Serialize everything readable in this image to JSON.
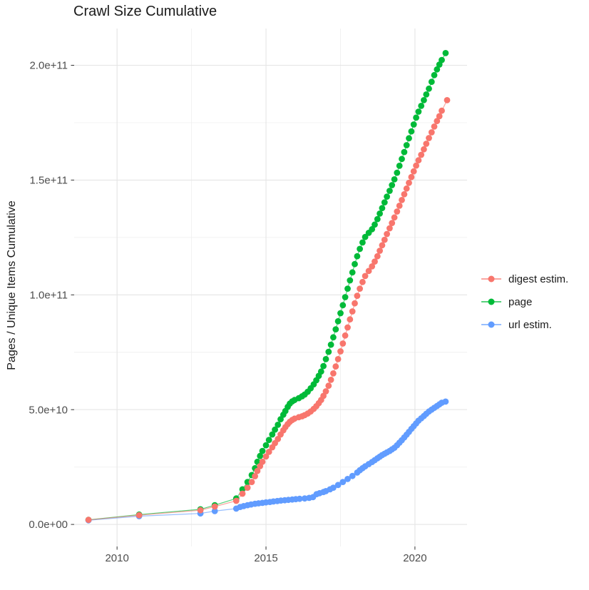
{
  "title": "Crawl Size Cumulative",
  "axes": {
    "y_label": "Pages / Unique Items Cumulative",
    "x_ticks": [
      {
        "value": 2010,
        "label": "2010"
      },
      {
        "value": 2015,
        "label": "2015"
      },
      {
        "value": 2020,
        "label": "2020"
      }
    ],
    "y_ticks": [
      {
        "value": 0,
        "label": "0.0e+00"
      },
      {
        "value": 50,
        "label": "5.0e+10"
      },
      {
        "value": 100,
        "label": "1.0e+11"
      },
      {
        "value": 150,
        "label": "1.5e+11"
      },
      {
        "value": 200,
        "label": "2.0e+11"
      }
    ],
    "x_minor": [
      2012.5,
      2017.5
    ],
    "y_minor": [
      25,
      75,
      125,
      175
    ],
    "xlim": [
      2008.56,
      2021.75
    ],
    "ylim": [
      -9.6,
      216
    ]
  },
  "legend": {
    "items": [
      {
        "label": "digest estim.",
        "color": "#F8766D"
      },
      {
        "label": "page",
        "color": "#00BA38"
      },
      {
        "label": "url estim.",
        "color": "#619CFF"
      }
    ]
  },
  "colors": {
    "grid_major": "#E5E5E5",
    "grid_minor": "#F0F0F0",
    "tick_mark": "#333333",
    "tick_text": "#4D4D4D"
  },
  "chart_data": {
    "type": "scatter",
    "title": "Crawl Size Cumulative",
    "xlabel": "",
    "ylabel": "Pages / Unique Items Cumulative",
    "value_unit": "billions (1e9) of pages / unique items",
    "x_unit": "decimal year",
    "xlim": [
      2008.56,
      2021.75
    ],
    "ylim_e9": [
      -9.6,
      216
    ],
    "grid": true,
    "legend_position": "right",
    "series": [
      {
        "name": "digest estim.",
        "color": "#F8766D",
        "points": [
          [
            2009.04,
            2
          ],
          [
            2010.74,
            4
          ],
          [
            2012.8,
            6.2
          ],
          [
            2013.28,
            7.8
          ],
          [
            2014.0,
            10.3
          ],
          [
            2014.21,
            13.4
          ],
          [
            2014.38,
            16
          ],
          [
            2014.52,
            18.5
          ],
          [
            2014.63,
            21
          ],
          [
            2014.71,
            23.3
          ],
          [
            2014.8,
            25.4
          ],
          [
            2014.88,
            27.3
          ],
          [
            2015.0,
            29.6
          ],
          [
            2015.1,
            31.6
          ],
          [
            2015.21,
            33.6
          ],
          [
            2015.3,
            35.4
          ],
          [
            2015.4,
            37.2
          ],
          [
            2015.49,
            39.2
          ],
          [
            2015.58,
            41
          ],
          [
            2015.65,
            42.4
          ],
          [
            2015.73,
            43.7
          ],
          [
            2015.8,
            44.7
          ],
          [
            2015.88,
            45.5
          ],
          [
            2015.96,
            46.1
          ],
          [
            2016.1,
            46.7
          ],
          [
            2016.21,
            47.1
          ],
          [
            2016.3,
            47.6
          ],
          [
            2016.4,
            48.3
          ],
          [
            2016.5,
            49.2
          ],
          [
            2016.6,
            50.3
          ],
          [
            2016.69,
            51.5
          ],
          [
            2016.77,
            52.8
          ],
          [
            2016.85,
            54.2
          ],
          [
            2016.93,
            56
          ],
          [
            2017.01,
            58
          ],
          [
            2017.1,
            60.4
          ],
          [
            2017.18,
            63
          ],
          [
            2017.26,
            65.8
          ],
          [
            2017.34,
            68.8
          ],
          [
            2017.42,
            72
          ],
          [
            2017.5,
            75.4
          ],
          [
            2017.58,
            78.8
          ],
          [
            2017.66,
            82.3
          ],
          [
            2017.74,
            85.8
          ],
          [
            2017.82,
            89.3
          ],
          [
            2017.9,
            92.8
          ],
          [
            2017.98,
            96.3
          ],
          [
            2018.06,
            99.6
          ],
          [
            2018.15,
            102.7
          ],
          [
            2018.24,
            105.6
          ],
          [
            2018.33,
            108.2
          ],
          [
            2018.45,
            110.4
          ],
          [
            2018.56,
            112.4
          ],
          [
            2018.65,
            114.5
          ],
          [
            2018.74,
            116.8
          ],
          [
            2018.82,
            119.2
          ],
          [
            2018.9,
            121.6
          ],
          [
            2018.98,
            124
          ],
          [
            2019.06,
            126.5
          ],
          [
            2019.15,
            129
          ],
          [
            2019.23,
            131.3
          ],
          [
            2019.31,
            133.7
          ],
          [
            2019.4,
            136.3
          ],
          [
            2019.48,
            138.8
          ],
          [
            2019.56,
            141.3
          ],
          [
            2019.64,
            143.8
          ],
          [
            2019.72,
            146.3
          ],
          [
            2019.8,
            148.8
          ],
          [
            2019.88,
            151.3
          ],
          [
            2019.96,
            153.8
          ],
          [
            2020.04,
            156.3
          ],
          [
            2020.12,
            158.6
          ],
          [
            2020.21,
            161
          ],
          [
            2020.3,
            163.4
          ],
          [
            2020.38,
            165.8
          ],
          [
            2020.47,
            168.3
          ],
          [
            2020.56,
            170.8
          ],
          [
            2020.65,
            173.3
          ],
          [
            2020.74,
            175.7
          ],
          [
            2020.82,
            177.8
          ],
          [
            2020.9,
            180.2
          ],
          [
            2021.08,
            184.8
          ]
        ]
      },
      {
        "name": "page",
        "color": "#00BA38",
        "points": [
          [
            2009.04,
            2
          ],
          [
            2010.74,
            4.3
          ],
          [
            2012.8,
            6.6
          ],
          [
            2013.28,
            8.4
          ],
          [
            2014.0,
            11.3
          ],
          [
            2014.21,
            15.3
          ],
          [
            2014.38,
            18.5
          ],
          [
            2014.52,
            21.5
          ],
          [
            2014.63,
            24.5
          ],
          [
            2014.71,
            27.3
          ],
          [
            2014.8,
            29.8
          ],
          [
            2014.88,
            32
          ],
          [
            2015.0,
            34.5
          ],
          [
            2015.1,
            36.8
          ],
          [
            2015.21,
            39.2
          ],
          [
            2015.3,
            41.3
          ],
          [
            2015.4,
            43.4
          ],
          [
            2015.49,
            45.8
          ],
          [
            2015.58,
            47.8
          ],
          [
            2015.65,
            49.4
          ],
          [
            2015.73,
            51.2
          ],
          [
            2015.8,
            52.6
          ],
          [
            2015.88,
            53.6
          ],
          [
            2015.96,
            54.2
          ],
          [
            2016.1,
            55
          ],
          [
            2016.21,
            55.8
          ],
          [
            2016.3,
            56.6
          ],
          [
            2016.4,
            57.8
          ],
          [
            2016.5,
            59.3
          ],
          [
            2016.6,
            61
          ],
          [
            2016.69,
            62.8
          ],
          [
            2016.77,
            64.7
          ],
          [
            2016.85,
            66.6
          ],
          [
            2016.93,
            69
          ],
          [
            2017.01,
            72
          ],
          [
            2017.1,
            75.2
          ],
          [
            2017.18,
            78.3
          ],
          [
            2017.26,
            81.5
          ],
          [
            2017.34,
            85
          ],
          [
            2017.42,
            88.5
          ],
          [
            2017.5,
            92
          ],
          [
            2017.58,
            95.5
          ],
          [
            2017.66,
            99
          ],
          [
            2017.74,
            102.7
          ],
          [
            2017.82,
            106.3
          ],
          [
            2017.9,
            109.8
          ],
          [
            2017.98,
            113.4
          ],
          [
            2018.06,
            116.8
          ],
          [
            2018.15,
            120
          ],
          [
            2018.24,
            122.8
          ],
          [
            2018.33,
            125.2
          ],
          [
            2018.45,
            127
          ],
          [
            2018.56,
            128.6
          ],
          [
            2018.65,
            130.6
          ],
          [
            2018.74,
            133
          ],
          [
            2018.82,
            135.4
          ],
          [
            2018.9,
            137.8
          ],
          [
            2018.98,
            140.3
          ],
          [
            2019.06,
            142.8
          ],
          [
            2019.15,
            145.3
          ],
          [
            2019.23,
            147.8
          ],
          [
            2019.31,
            150.3
          ],
          [
            2019.4,
            153.2
          ],
          [
            2019.48,
            156.2
          ],
          [
            2019.56,
            159.2
          ],
          [
            2019.64,
            162.2
          ],
          [
            2019.72,
            165.2
          ],
          [
            2019.8,
            168.2
          ],
          [
            2019.88,
            171.2
          ],
          [
            2019.96,
            174.2
          ],
          [
            2020.04,
            177.2
          ],
          [
            2020.12,
            179.8
          ],
          [
            2020.21,
            182.3
          ],
          [
            2020.3,
            184.8
          ],
          [
            2020.38,
            187.3
          ],
          [
            2020.47,
            189.8
          ],
          [
            2020.56,
            192.8
          ],
          [
            2020.65,
            195.7
          ],
          [
            2020.74,
            198.2
          ],
          [
            2020.82,
            200.3
          ],
          [
            2020.9,
            202.3
          ],
          [
            2021.03,
            205.3
          ]
        ]
      },
      {
        "name": "url estim.",
        "color": "#619CFF",
        "points": [
          [
            2009.04,
            1.8
          ],
          [
            2010.74,
            3.6
          ],
          [
            2012.8,
            4.8
          ],
          [
            2013.28,
            5.8
          ],
          [
            2014.0,
            6.9
          ],
          [
            2014.13,
            7.6
          ],
          [
            2014.25,
            8
          ],
          [
            2014.38,
            8.4
          ],
          [
            2014.5,
            8.7
          ],
          [
            2014.63,
            9
          ],
          [
            2014.75,
            9.2
          ],
          [
            2014.88,
            9.4
          ],
          [
            2015.0,
            9.6
          ],
          [
            2015.13,
            9.8
          ],
          [
            2015.25,
            10
          ],
          [
            2015.38,
            10.2
          ],
          [
            2015.5,
            10.4
          ],
          [
            2015.63,
            10.55
          ],
          [
            2015.75,
            10.7
          ],
          [
            2015.88,
            10.85
          ],
          [
            2016.0,
            11
          ],
          [
            2016.13,
            11.15
          ],
          [
            2016.3,
            11.3
          ],
          [
            2016.45,
            11.55
          ],
          [
            2016.58,
            11.9
          ],
          [
            2016.7,
            13.2
          ],
          [
            2016.8,
            13.6
          ],
          [
            2016.93,
            14.1
          ],
          [
            2017.01,
            14.5
          ],
          [
            2017.15,
            15.3
          ],
          [
            2017.26,
            16
          ],
          [
            2017.42,
            17.2
          ],
          [
            2017.58,
            18.5
          ],
          [
            2017.74,
            19.8
          ],
          [
            2017.9,
            21.1
          ],
          [
            2018.06,
            22.6
          ],
          [
            2018.15,
            23.6
          ],
          [
            2018.24,
            24.5
          ],
          [
            2018.33,
            25.3
          ],
          [
            2018.45,
            26.3
          ],
          [
            2018.56,
            27.2
          ],
          [
            2018.65,
            28
          ],
          [
            2018.74,
            28.8
          ],
          [
            2018.82,
            29.5
          ],
          [
            2018.9,
            30.2
          ],
          [
            2018.98,
            30.8
          ],
          [
            2019.06,
            31.4
          ],
          [
            2019.15,
            32
          ],
          [
            2019.23,
            32.7
          ],
          [
            2019.31,
            33.4
          ],
          [
            2019.4,
            34.5
          ],
          [
            2019.48,
            35.6
          ],
          [
            2019.56,
            36.7
          ],
          [
            2019.64,
            37.9
          ],
          [
            2019.72,
            39.1
          ],
          [
            2019.8,
            40.3
          ],
          [
            2019.88,
            41.6
          ],
          [
            2019.96,
            42.8
          ],
          [
            2020.04,
            44
          ],
          [
            2020.12,
            45.2
          ],
          [
            2020.21,
            46.2
          ],
          [
            2020.3,
            47.2
          ],
          [
            2020.38,
            48.2
          ],
          [
            2020.47,
            49.2
          ],
          [
            2020.56,
            50
          ],
          [
            2020.65,
            50.8
          ],
          [
            2020.74,
            51.6
          ],
          [
            2020.82,
            52.3
          ],
          [
            2020.9,
            53
          ],
          [
            2021.03,
            53.5
          ]
        ]
      }
    ]
  }
}
